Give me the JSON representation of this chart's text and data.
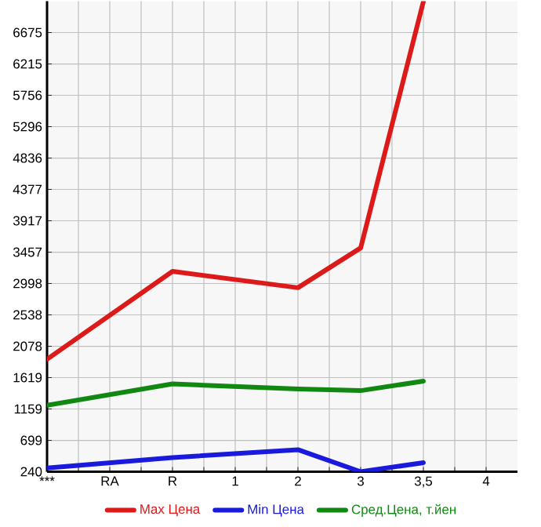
{
  "chart_data": {
    "type": "line",
    "categories": [
      "***",
      "RA",
      "R",
      "1",
      "2",
      "3",
      "3,5",
      "4"
    ],
    "series": [
      {
        "name": "Max Цена",
        "color": "#dd1a1a",
        "values": [
          1888,
          null,
          3175,
          null,
          2936,
          3519,
          7130,
          null
        ]
      },
      {
        "name": "Min Цена",
        "color": "#1a1add",
        "values": [
          293,
          null,
          447,
          null,
          562,
          240,
          371,
          null
        ]
      },
      {
        "name": "Сред.Цена, т.йен",
        "color": "#118811",
        "values": [
          1212,
          null,
          1527,
          null,
          1451,
          1428,
          1566,
          null
        ]
      }
    ],
    "ylim": [
      240,
      7135
    ],
    "yticks": [
      240,
      699,
      1159,
      1619,
      2078,
      2538,
      2998,
      3457,
      3917,
      4377,
      4836,
      5296,
      5756,
      6215,
      6675
    ],
    "grid": true,
    "legend": "bottom"
  }
}
